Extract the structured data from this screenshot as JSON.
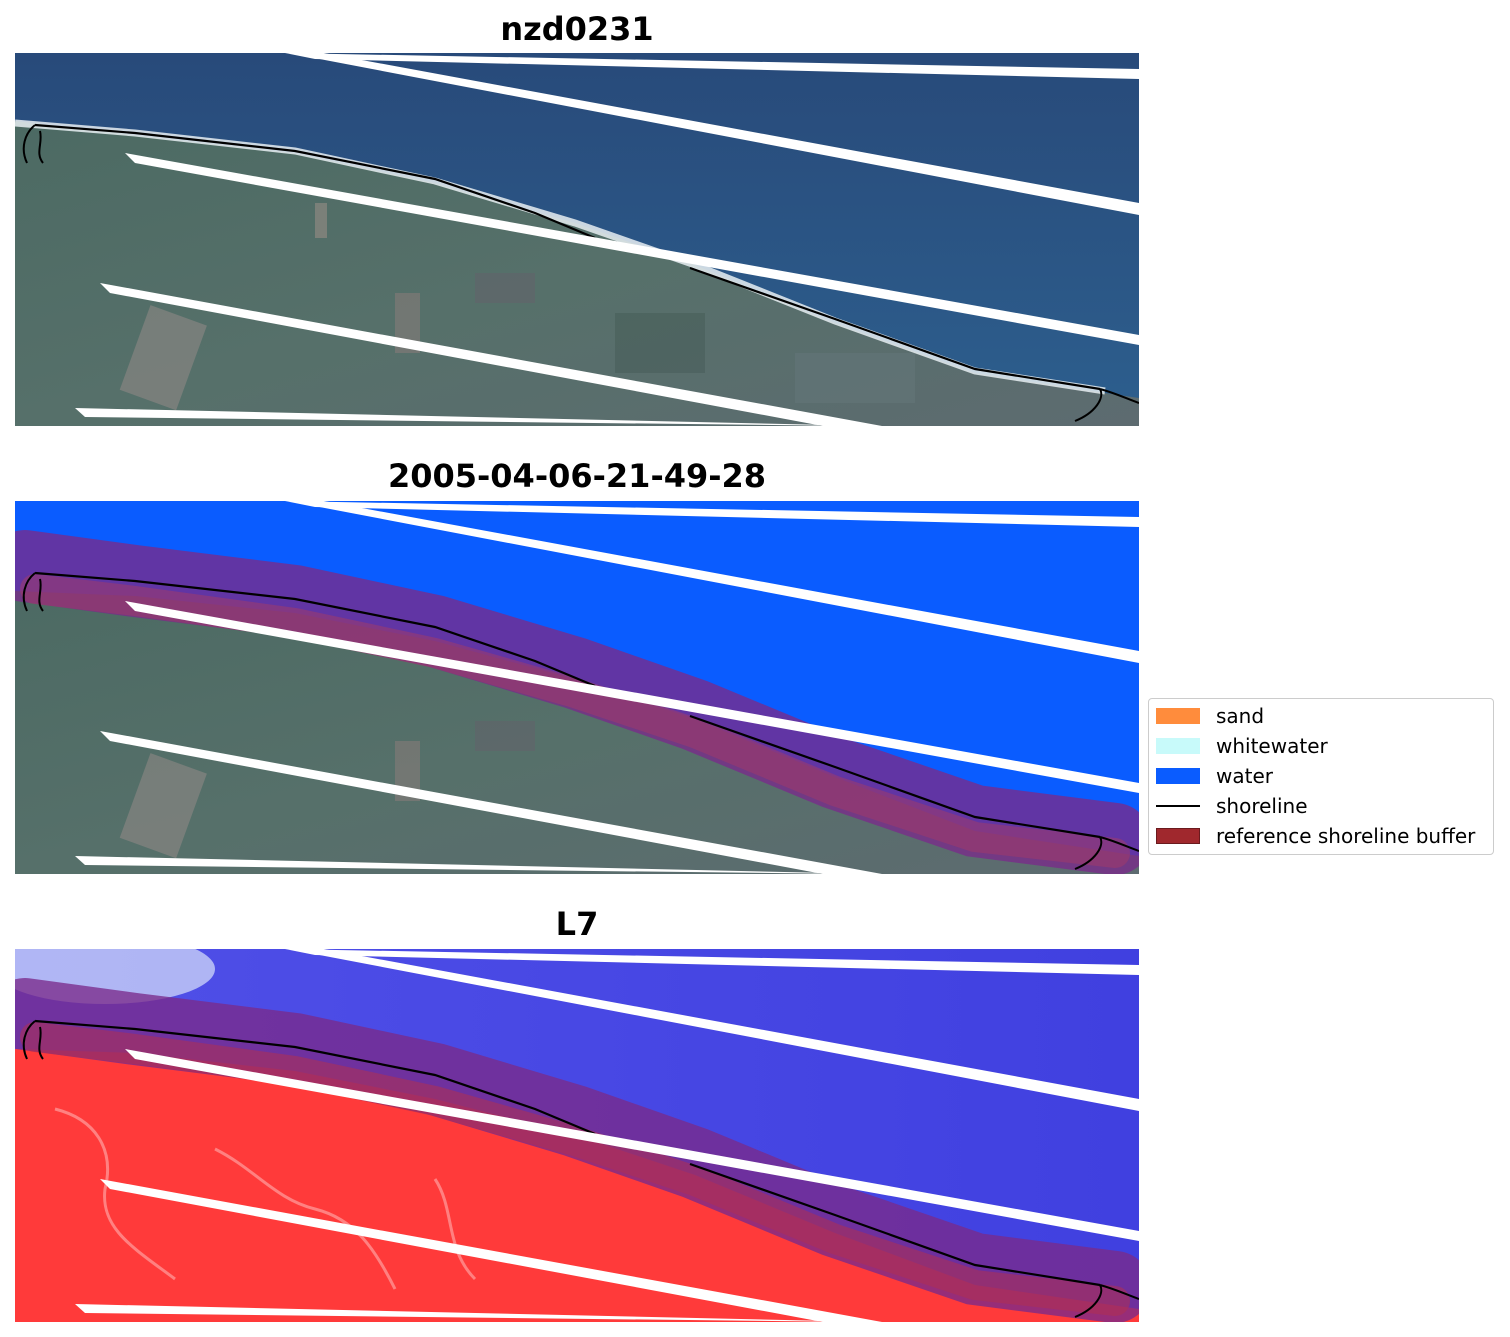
{
  "panels": [
    {
      "title": "nzd0231",
      "type": "rgb"
    },
    {
      "title": "2005-04-06-21-49-28",
      "type": "classified"
    },
    {
      "title": "L7",
      "type": "index"
    }
  ],
  "legend": {
    "items": [
      {
        "label": "sand",
        "color": "#ff8c3c",
        "kind": "patch"
      },
      {
        "label": "whitewater",
        "color": "#c8fafa",
        "kind": "patch"
      },
      {
        "label": "water",
        "color": "#0a5cff",
        "kind": "patch"
      },
      {
        "label": "shoreline",
        "color": "#000000",
        "kind": "line"
      },
      {
        "label": "reference shoreline buffer",
        "color": "#a0282d",
        "kind": "patch"
      }
    ]
  },
  "colors": {
    "ocean": "#2a5585",
    "land": "#4f6e65",
    "water_class": "#0a5cff",
    "buffer_overlay": "#8a2a6a",
    "index_water": "#4848e6",
    "index_land": "#ff3434"
  }
}
